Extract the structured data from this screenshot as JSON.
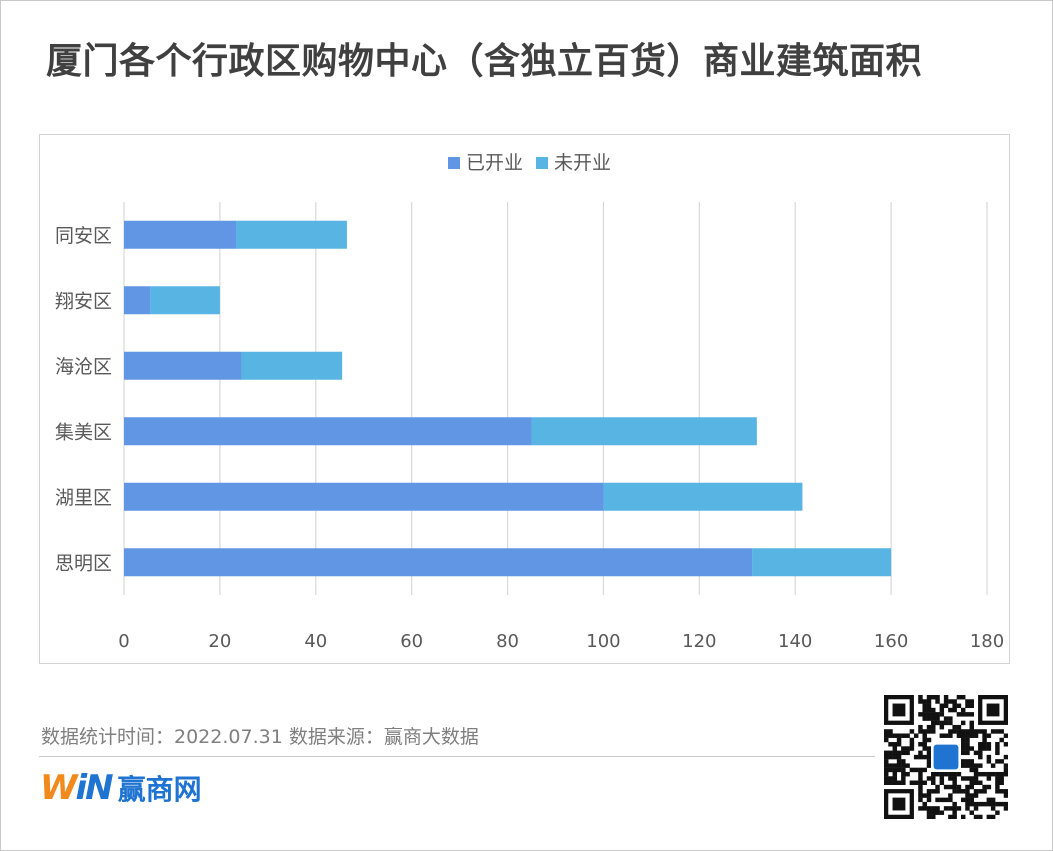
{
  "title": "厦门各个行政区购物中心（含独立百货）商业建筑面积",
  "footer": {
    "note": "数据统计时间：2022.07.31  数据来源：赢商大数据",
    "logo_text": "赢商网",
    "logo_mark": [
      "W",
      "i",
      "N"
    ]
  },
  "colors": {
    "opened": "#6196e4",
    "unopened": "#58b5e3",
    "grid": "#d9d9d9",
    "text": "#595959"
  },
  "chart_data": {
    "type": "bar",
    "orientation": "horizontal",
    "stacked": true,
    "categories": [
      "思明区",
      "湖里区",
      "集美区",
      "海沧区",
      "翔安区",
      "同安区"
    ],
    "series": [
      {
        "name": "已开业",
        "values": [
          131,
          100,
          85,
          24.5,
          5.5,
          23.5
        ]
      },
      {
        "name": "未开业",
        "values": [
          29,
          41.5,
          47,
          21,
          14.5,
          23
        ]
      }
    ],
    "xlim": [
      0,
      180
    ],
    "xticks": [
      0,
      20,
      40,
      60,
      80,
      100,
      120,
      140,
      160,
      180
    ],
    "grid": true,
    "legend": "top"
  }
}
